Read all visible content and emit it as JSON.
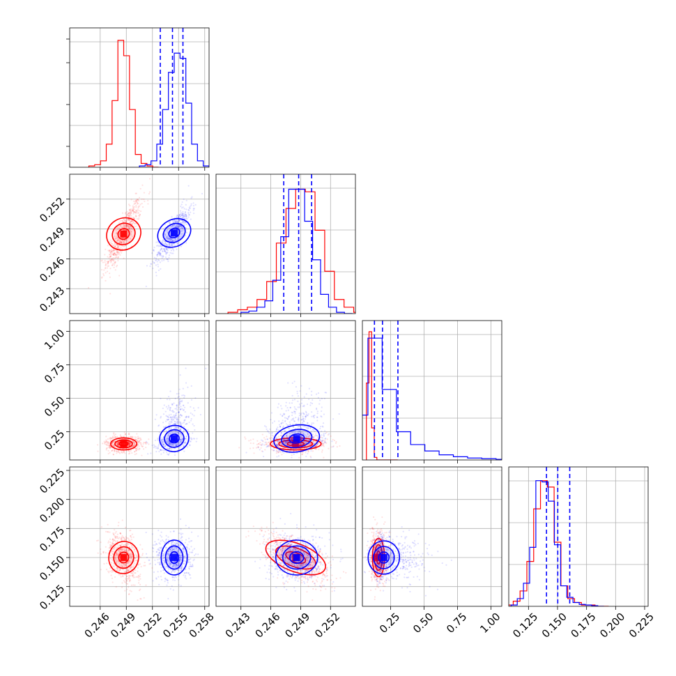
{
  "colors": {
    "series_a": "#ff0000",
    "series_b": "#0000ff",
    "grid": "#b0b0b0"
  },
  "chart_data": {
    "type": "corner",
    "grid": true,
    "n_params": 4,
    "param_ranges": [
      [
        0.2425,
        0.2585
      ],
      [
        0.2405,
        0.2545
      ],
      [
        0.04,
        1.08
      ],
      [
        0.108,
        0.228
      ]
    ],
    "tick_labels": [
      [
        "0.246",
        "0.249",
        "0.252",
        "0.255",
        "0.258"
      ],
      [
        "0.243",
        "0.246",
        "0.249",
        "0.252"
      ],
      [
        "0.25",
        "0.50",
        "0.75",
        "1.00"
      ],
      [
        "0.125",
        "0.150",
        "0.175",
        "0.200",
        "0.225"
      ]
    ],
    "series": [
      {
        "color": "red",
        "means": [
          0.2487,
          0.2485,
          0.16,
          0.15
        ],
        "sds": [
          0.001,
          0.0017,
          0.03,
          0.011
        ],
        "corr": [
          [
            0,
            1,
            0.85
          ],
          [
            0,
            3,
            -0.35
          ],
          [
            1,
            3,
            -0.6
          ]
        ],
        "hist_heights": [
          [
            0.01,
            0.02,
            0.05,
            0.18,
            0.52,
            0.99,
            0.87,
            0.45,
            0.1,
            0.03,
            0.01,
            0.0
          ],
          [
            0.01,
            0.03,
            0.05,
            0.11,
            0.25,
            0.55,
            0.82,
            0.97,
            0.95,
            0.65,
            0.33,
            0.11,
            0.05,
            0.01
          ],
          [
            0.6,
            1.0,
            0.25,
            0.02,
            0.0,
            0.0,
            0.0,
            0.0,
            0.0,
            0.0,
            0.0,
            0.0
          ],
          [
            0.01,
            0.04,
            0.12,
            0.35,
            0.76,
            0.98,
            0.93,
            0.5,
            0.16,
            0.06,
            0.03,
            0.01,
            0.01,
            0.0,
            0.0
          ]
        ]
      },
      {
        "color": "blue",
        "means": [
          0.2545,
          0.2486,
          0.2,
          0.15
        ],
        "sds": [
          0.001,
          0.0014,
          0.075,
          0.01
        ],
        "corr": [
          [
            0,
            1,
            0.8
          ],
          [
            0,
            2,
            0.3
          ],
          [
            1,
            2,
            0.25
          ],
          [
            2,
            3,
            -0.1
          ]
        ],
        "hist_heights": [
          [
            0.01,
            0.02,
            0.05,
            0.18,
            0.45,
            0.74,
            0.89,
            0.85,
            0.5,
            0.18,
            0.05,
            0.01
          ],
          [
            0.01,
            0.02,
            0.05,
            0.1,
            0.26,
            0.6,
            0.97,
            0.97,
            0.72,
            0.42,
            0.15,
            0.05,
            0.01,
            0.0
          ],
          [
            0.35,
            0.95,
            0.55,
            0.22,
            0.12,
            0.07,
            0.04,
            0.025,
            0.015,
            0.01,
            0.005,
            0.0
          ],
          [
            0.01,
            0.06,
            0.18,
            0.46,
            0.98,
            0.97,
            0.82,
            0.48,
            0.16,
            0.07,
            0.03,
            0.015,
            0.01,
            0.005,
            0.0
          ]
        ]
      }
    ],
    "quantile_lines": [
      {
        "param": 0,
        "values": [
          0.2529,
          0.2543,
          0.2555
        ],
        "color": "blue"
      },
      {
        "param": 1,
        "values": [
          0.2473,
          0.2488,
          0.2501
        ],
        "color": "blue"
      },
      {
        "param": 2,
        "values": [
          0.13,
          0.19,
          0.305
        ],
        "color": "blue"
      },
      {
        "param": 3,
        "values": [
          0.1405,
          0.1502,
          0.1605
        ],
        "color": "blue"
      }
    ]
  }
}
